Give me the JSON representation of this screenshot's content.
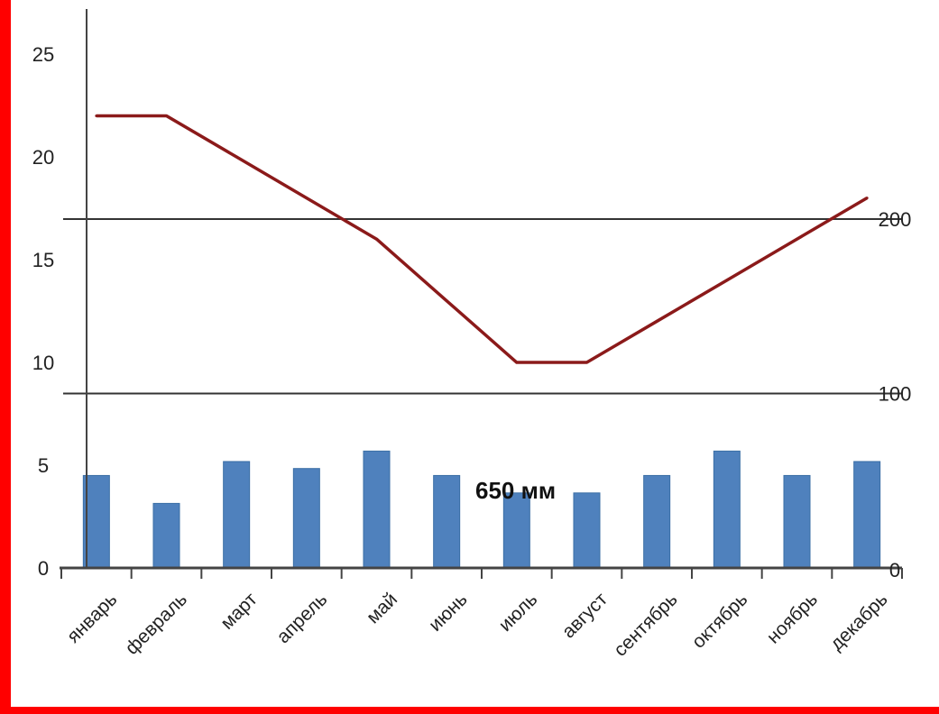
{
  "colors": {
    "frame": "#ff0000",
    "bar": "#4f81bd",
    "bar_edge": "#3a6ea5",
    "line": "#8b1a1a",
    "axis": "#444444",
    "hline": "#333333"
  },
  "chart_data": {
    "type": "bar",
    "title": "",
    "xlabel": "",
    "ylabel": "",
    "categories": [
      "январь",
      "февраль",
      "март",
      "апрель",
      "май",
      "июнь",
      "июль",
      "август",
      "сентябрь",
      "октябрь",
      "ноябрь",
      "декабрь"
    ],
    "series": [
      {
        "type": "bar",
        "axis": "right",
        "values": [
          53,
          37,
          61,
          57,
          67,
          53,
          43,
          43,
          53,
          67,
          53,
          61
        ]
      },
      {
        "type": "line",
        "axis": "left",
        "values": [
          22,
          22,
          20,
          18,
          16,
          13,
          10,
          10,
          12,
          14,
          16,
          18
        ]
      }
    ],
    "ylim": [
      0,
      25
    ],
    "y_ticks": [
      "0",
      "5",
      "10",
      "15",
      "20",
      "25"
    ],
    "y2lim": [
      0,
      250
    ],
    "y2_ticks": [
      "0",
      "100",
      "200"
    ],
    "annotations": [
      "650 мм"
    ],
    "grid": false
  }
}
